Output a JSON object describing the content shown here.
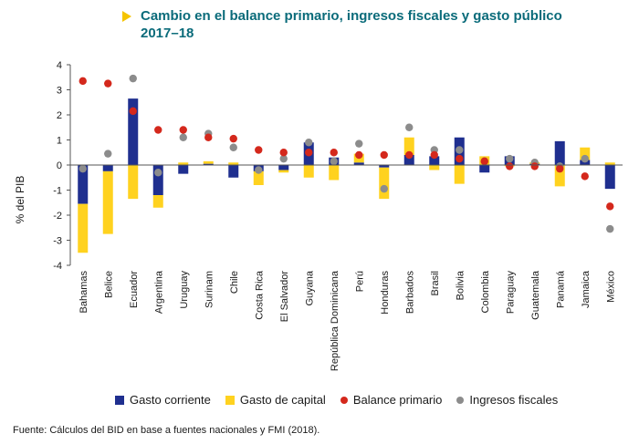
{
  "chart_data": {
    "type": "bar",
    "title_line1": "Cambio en el balance primario, ingresos fiscales y gasto público",
    "title_line2": "2017–18",
    "ylabel": "% del PIB",
    "ylim": [
      -4,
      4
    ],
    "yticks": [
      4,
      3,
      2,
      1,
      0,
      -1,
      -2,
      -3,
      -4
    ],
    "grid": false,
    "legend_position": "bottom",
    "colors": {
      "gasto_corriente": "#1f2f8f",
      "gasto_de_capital": "#ffd21f",
      "balance_primario": "#d4281c",
      "ingresos_fiscales": "#8c8c8c"
    },
    "categories": [
      "Bahamas",
      "Belice",
      "Ecuador",
      "Argentina",
      "Uruguay",
      "Surinam",
      "Chile",
      "Costa Rica",
      "El Salvador",
      "Guyana",
      "República Dominicana",
      "Perú",
      "Honduras",
      "Barbados",
      "Brasil",
      "Bolivia",
      "Colombia",
      "Paraguay",
      "Guatemala",
      "Panamá",
      "Jamaica",
      "México"
    ],
    "series": [
      {
        "name": "Gasto corriente",
        "kind": "stacked-bar",
        "values": [
          -1.55,
          -0.25,
          2.65,
          -1.2,
          -0.35,
          0.05,
          -0.5,
          -0.25,
          -0.2,
          0.9,
          0.3,
          0.1,
          -0.1,
          0.4,
          0.35,
          1.1,
          -0.3,
          0.35,
          0.05,
          0.95,
          0.2,
          -0.95
        ]
      },
      {
        "name": "Gasto de capital",
        "kind": "stacked-bar",
        "values": [
          -1.95,
          -2.5,
          -1.35,
          -0.5,
          0.1,
          0.1,
          0.1,
          -0.55,
          -0.1,
          -0.5,
          -0.6,
          0.35,
          -1.25,
          0.7,
          -0.2,
          -0.75,
          0.35,
          -0.05,
          0.05,
          -0.85,
          0.5,
          0.1
        ]
      },
      {
        "name": "Balance primario",
        "kind": "dot",
        "values": [
          3.35,
          3.25,
          2.15,
          1.4,
          1.4,
          1.1,
          1.05,
          0.6,
          0.5,
          0.5,
          0.5,
          0.4,
          0.4,
          0.4,
          0.4,
          0.25,
          0.15,
          -0.05,
          -0.05,
          -0.15,
          -0.45,
          -1.65
        ]
      },
      {
        "name": "Ingresos fiscales",
        "kind": "dot",
        "values": [
          -0.15,
          0.45,
          3.45,
          -0.3,
          1.1,
          1.25,
          0.7,
          -0.2,
          0.25,
          0.9,
          0.15,
          0.85,
          -0.95,
          1.5,
          0.6,
          0.6,
          0.15,
          0.25,
          0.1,
          -0.05,
          0.25,
          -2.55
        ]
      }
    ]
  },
  "legend": {
    "items": [
      "Gasto corriente",
      "Gasto de capital",
      "Balance primario",
      "Ingresos fiscales"
    ]
  },
  "source": "Fuente: Cálculos del BID en base a fuentes nacionales y FMI (2018)."
}
